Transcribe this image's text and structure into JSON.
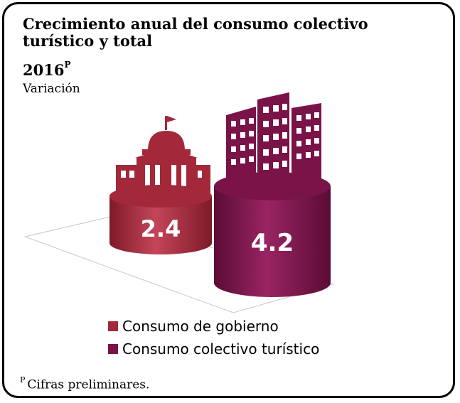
{
  "chart_data": {
    "type": "bar",
    "title_line1": "Crecimiento anual del consumo colectivo",
    "title_line2": "turístico y total",
    "year": "2016",
    "year_superscript": "P",
    "subtitle": "Variación",
    "categories": [
      "Consumo de gobierno",
      "Consumo colectivo turístico"
    ],
    "values": [
      2.4,
      4.2
    ],
    "value_labels": [
      "2.4",
      "4.2"
    ],
    "colors": [
      "#A3293A",
      "#7A1348"
    ],
    "legend_position": "bottom"
  },
  "footnote": {
    "marker": "P",
    "text": "Cifras preliminares."
  },
  "icons": [
    "government-building-icon",
    "city-buildings-icon"
  ]
}
